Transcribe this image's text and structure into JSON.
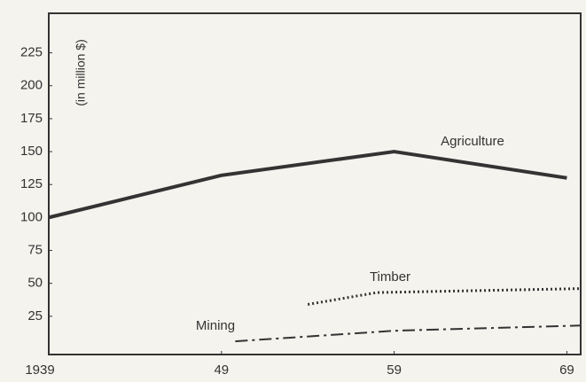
{
  "chart_data": {
    "type": "line",
    "y_label": "(in million $)",
    "xlim": [
      1939,
      1969.8
    ],
    "ylim": [
      0,
      255
    ],
    "xticks": [
      1939,
      {
        "value": 1949,
        "label": "49"
      },
      {
        "value": 1959,
        "label": "59"
      },
      {
        "value": 1969,
        "label": "69"
      }
    ],
    "yticks": [
      25,
      50,
      75,
      100,
      125,
      150,
      175,
      200,
      225
    ],
    "series": [
      {
        "name": "Agriculture",
        "color": "#333333",
        "dash": "solid",
        "x": [
          1939,
          1944,
          1949,
          1959,
          1969
        ],
        "values": [
          100,
          116,
          132,
          150,
          130
        ]
      },
      {
        "name": "Timber",
        "color": "#333333",
        "dash": "dotted",
        "x": [
          1954,
          1958,
          1969.8
        ],
        "values": [
          34,
          43,
          46
        ]
      },
      {
        "name": "Mining",
        "color": "#333333",
        "dash": "dashdot",
        "x": [
          1949.8,
          1959,
          1969.8
        ],
        "values": [
          6,
          14,
          18
        ]
      }
    ]
  }
}
